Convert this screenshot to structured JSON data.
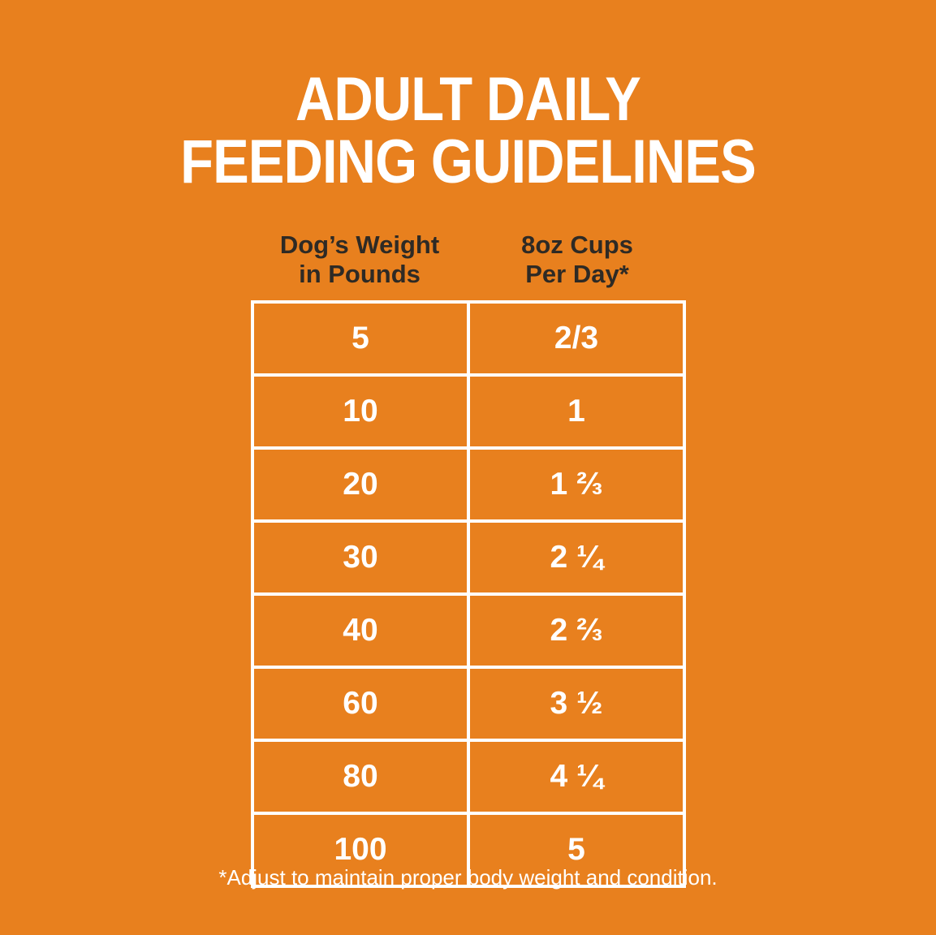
{
  "page": {
    "background_color": "#E8801E",
    "grid_line_color": "#FFFFFF",
    "title_text_color": "#FFFFFF",
    "header_text_color": "#2E2A25",
    "cell_text_color": "#FFFFFF",
    "title_line1": "ADULT DAILY",
    "title_line2": "FEEDING GUIDELINES"
  },
  "table_display": {
    "header_weight": "Dog’s Weight\nin Pounds",
    "header_cups": "8oz Cups\nPer Day*"
  },
  "chart_data": {
    "type": "table",
    "title": "ADULT DAILY FEEDING GUIDELINES",
    "columns": [
      "Dog’s Weight in Pounds",
      "8oz Cups Per Day*"
    ],
    "rows": [
      [
        "5",
        "2/3"
      ],
      [
        "10",
        "1"
      ],
      [
        "20",
        "1 ⅔"
      ],
      [
        "30",
        "2 ¼"
      ],
      [
        "40",
        "2 ⅔"
      ],
      [
        "60",
        "3 ½"
      ],
      [
        "80",
        "4 ¼"
      ],
      [
        "100",
        "5"
      ]
    ],
    "footnote": "*Adjust to maintain proper body weight and condition."
  }
}
